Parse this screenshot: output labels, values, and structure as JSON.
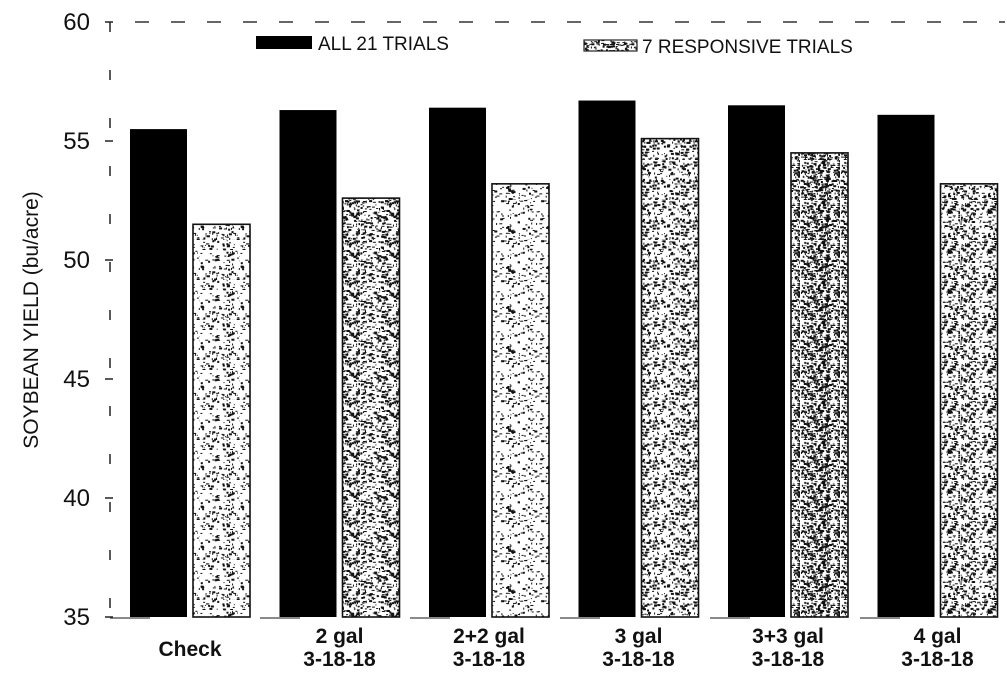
{
  "chart_data": {
    "type": "bar",
    "title": "",
    "xlabel": "",
    "ylabel": "SOYBEAN YIELD (bu/acre)",
    "ylim": [
      35,
      60
    ],
    "yticks": [
      35,
      40,
      45,
      50,
      55,
      60
    ],
    "grid": false,
    "legend_position": "top",
    "categories": [
      {
        "line1": "Check",
        "line2": ""
      },
      {
        "line1": "2 gal",
        "line2": "3-18-18"
      },
      {
        "line1": "2+2 gal",
        "line2": "3-18-18"
      },
      {
        "line1": "3 gal",
        "line2": "3-18-18"
      },
      {
        "line1": "3+3 gal",
        "line2": "3-18-18"
      },
      {
        "line1": "4 gal",
        "line2": "3-18-18"
      }
    ],
    "series": [
      {
        "name": "ALL 21 TRIALS",
        "color": "#000000",
        "fill": "solid",
        "values": [
          55.5,
          56.3,
          56.4,
          56.7,
          56.5,
          56.1
        ]
      },
      {
        "name": "7 RESPONSIVE TRIALS",
        "color": "#ffffff",
        "fill": "speckled",
        "values": [
          51.5,
          52.6,
          53.2,
          55.1,
          54.5,
          53.2
        ]
      }
    ],
    "series_speckle_density": [
      0.22,
      0.42,
      0.18,
      0.32,
      0.62,
      0.38
    ]
  }
}
